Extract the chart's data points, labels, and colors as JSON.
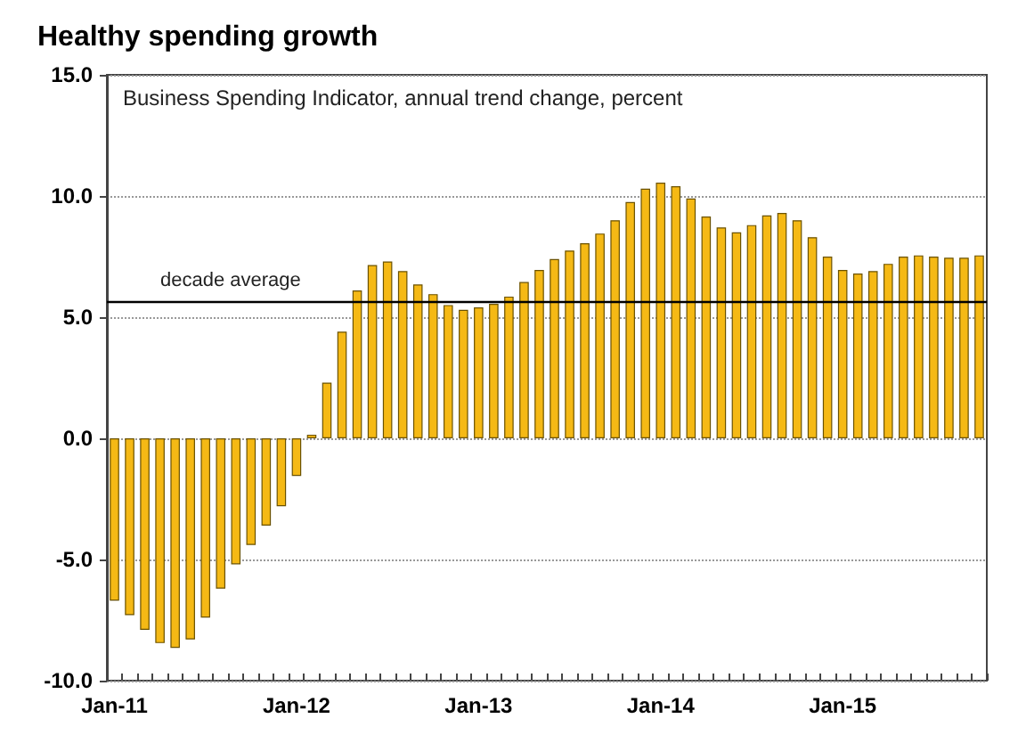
{
  "chart_data": {
    "type": "bar",
    "title": "Healthy spending growth",
    "subtitle": "Business Spending Indicator, annual trend change, percent",
    "categories": [
      "Jan-11",
      null,
      null,
      null,
      null,
      null,
      null,
      null,
      null,
      null,
      null,
      null,
      "Jan-12",
      null,
      null,
      null,
      null,
      null,
      null,
      null,
      null,
      null,
      null,
      null,
      "Jan-13",
      null,
      null,
      null,
      null,
      null,
      null,
      null,
      null,
      null,
      null,
      null,
      "Jan-14",
      null,
      null,
      null,
      null,
      null,
      null,
      null,
      null,
      null,
      null,
      null,
      "Jan-15",
      null,
      null,
      null,
      null,
      null,
      null,
      null,
      null,
      null
    ],
    "values": [
      -6.7,
      -7.3,
      -7.9,
      -8.45,
      -8.65,
      -8.3,
      -7.4,
      -6.2,
      -5.2,
      -4.4,
      -3.6,
      -2.8,
      -1.55,
      0.15,
      2.3,
      4.4,
      6.1,
      7.15,
      7.3,
      6.9,
      6.35,
      5.95,
      5.5,
      5.3,
      5.4,
      5.55,
      5.85,
      6.45,
      6.95,
      7.4,
      7.75,
      8.05,
      8.45,
      9.0,
      9.75,
      10.3,
      10.55,
      10.4,
      9.9,
      9.15,
      8.7,
      8.5,
      8.8,
      9.2,
      9.3,
      9.0,
      8.3,
      7.5,
      6.95,
      6.8,
      6.9,
      7.2,
      7.5,
      7.55,
      7.5,
      7.45,
      7.45,
      7.55
    ],
    "color": "#f5b915",
    "ylim": [
      -10,
      15
    ],
    "yticks": [
      {
        "value": -10,
        "label": "-10.0"
      },
      {
        "value": -5,
        "label": "-5.0"
      },
      {
        "value": 0,
        "label": "0.0"
      },
      {
        "value": 5,
        "label": "5.0"
      },
      {
        "value": 10,
        "label": "10.0"
      },
      {
        "value": 15,
        "label": "15.0"
      }
    ],
    "grid": "y",
    "ref_lines": [
      {
        "axis": "y",
        "value": 5.65,
        "label": "decade average",
        "color": "#000000"
      }
    ]
  }
}
